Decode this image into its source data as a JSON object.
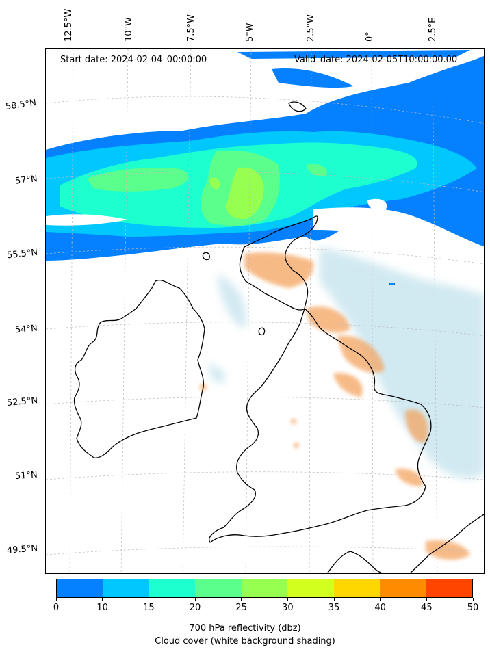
{
  "header": {
    "start_date": "Start date: 2024-02-04_00:00:00",
    "valid_date": "Valid_date: 2024-02-05T10:00:00.00"
  },
  "axes": {
    "lon_labels": [
      "12.5°W",
      "10°W",
      "7.5°W",
      "5°W",
      "2.5°W",
      "0°",
      "2.5°E"
    ],
    "lat_labels": [
      "58.5°N",
      "57°N",
      "55.5°N",
      "54°N",
      "52.5°N",
      "51°N",
      "49.5°N"
    ],
    "gridlines": true,
    "grid_style": "dashed"
  },
  "colorbar": {
    "ticks": [
      "0",
      "10",
      "15",
      "20",
      "25",
      "30",
      "35",
      "40",
      "45",
      "50"
    ],
    "colors": [
      "#0580ff",
      "#00c8ff",
      "#1effd0",
      "#5aff8c",
      "#96ff50",
      "#d2ff1e",
      "#ffd700",
      "#ff8c00",
      "#ff4500"
    ],
    "label_line1": "700 hPa reflectivity (dbz)",
    "label_line2": "Cloud cover (white background shading)"
  },
  "legend_colors": {
    "cloud_shading": "#add8e6",
    "precip_orange": "#f4a460",
    "coastline": "#000000"
  }
}
